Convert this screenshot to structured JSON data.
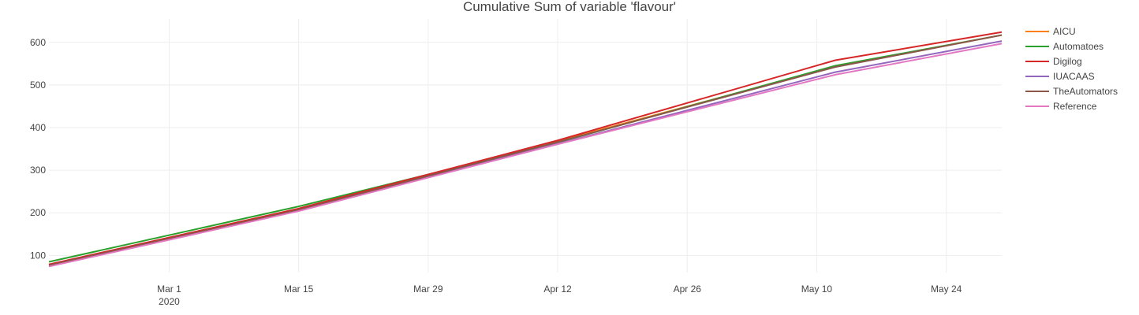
{
  "chart_data": {
    "type": "line",
    "title": "Cumulative Sum of variable 'flavour'",
    "xlabel": "",
    "ylabel": "",
    "x_axis_type": "date",
    "xlim": [
      "2020-02-17",
      "2020-05-30"
    ],
    "ylim": [
      60,
      655
    ],
    "grid": true,
    "legend_position": "top-right, outside plot",
    "x_ticks": [
      {
        "date": "2020-03-01",
        "label": "Mar 1",
        "sublabel": "2020"
      },
      {
        "date": "2020-03-15",
        "label": "Mar 15",
        "sublabel": ""
      },
      {
        "date": "2020-03-29",
        "label": "Mar 29",
        "sublabel": ""
      },
      {
        "date": "2020-04-12",
        "label": "Apr 12",
        "sublabel": ""
      },
      {
        "date": "2020-04-26",
        "label": "Apr 26",
        "sublabel": ""
      },
      {
        "date": "2020-05-10",
        "label": "May 10",
        "sublabel": ""
      },
      {
        "date": "2020-05-24",
        "label": "May 24",
        "sublabel": ""
      }
    ],
    "y_ticks": [
      100,
      200,
      300,
      400,
      500,
      600
    ],
    "series": [
      {
        "name": "AICU",
        "color": "#ff7f0e",
        "points": [
          [
            "2020-02-17",
            78
          ],
          [
            "2020-03-15",
            208
          ],
          [
            "2020-04-12",
            368
          ],
          [
            "2020-05-12",
            543
          ],
          [
            "2020-05-30",
            617
          ]
        ]
      },
      {
        "name": "Automatoes",
        "color": "#2ca02c",
        "points": [
          [
            "2020-02-17",
            85
          ],
          [
            "2020-03-15",
            215
          ],
          [
            "2020-04-12",
            365
          ],
          [
            "2020-05-12",
            545
          ],
          [
            "2020-05-30",
            617
          ]
        ]
      },
      {
        "name": "Digilog",
        "color": "#d62728",
        "points": [
          [
            "2020-02-17",
            79
          ],
          [
            "2020-03-15",
            210
          ],
          [
            "2020-04-12",
            370
          ],
          [
            "2020-05-12",
            558
          ],
          [
            "2020-05-30",
            624
          ]
        ]
      },
      {
        "name": "IUACAAS",
        "color": "#9467bd",
        "points": [
          [
            "2020-02-17",
            76
          ],
          [
            "2020-03-15",
            206
          ],
          [
            "2020-04-12",
            362
          ],
          [
            "2020-05-12",
            530
          ],
          [
            "2020-05-30",
            603
          ]
        ]
      },
      {
        "name": "TheAutomators",
        "color": "#8c564b",
        "points": [
          [
            "2020-02-17",
            77
          ],
          [
            "2020-03-15",
            207
          ],
          [
            "2020-04-12",
            366
          ],
          [
            "2020-05-12",
            542
          ],
          [
            "2020-05-30",
            617
          ]
        ]
      },
      {
        "name": "Reference",
        "color": "#e377c2",
        "points": [
          [
            "2020-02-17",
            74
          ],
          [
            "2020-03-15",
            204
          ],
          [
            "2020-04-12",
            361
          ],
          [
            "2020-05-12",
            524
          ],
          [
            "2020-05-30",
            597
          ]
        ]
      }
    ]
  }
}
